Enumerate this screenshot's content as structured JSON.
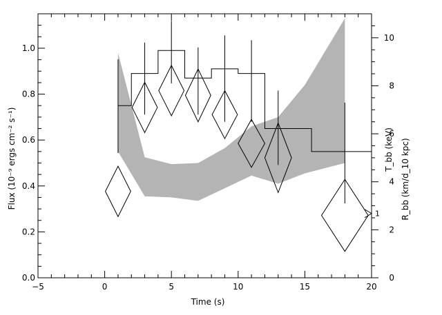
{
  "chart_data": {
    "type": "scatter",
    "xlabel": "Time (s)",
    "ylabel_left": "Flux (10⁻⁹ ergs cm⁻² s⁻¹)",
    "ylabel_right_temp": "T_bb (keV)",
    "ylabel_right_radius": "R_bb (km/d_10 kpc)",
    "xlim": [
      -5,
      20
    ],
    "ylim_left": [
      0.0,
      1.15
    ],
    "ylim_right": [
      0,
      11
    ],
    "x_ticks": [
      "−5",
      "0",
      "5",
      "10",
      "15",
      "20"
    ],
    "y_left_ticks": [
      "0.0",
      "0.2",
      "0.4",
      "0.6",
      "0.8",
      "1.0"
    ],
    "y_right_ticks": [
      "0",
      "2",
      "4",
      "6",
      "8",
      "10"
    ],
    "flux_histogram": {
      "name": "Flux",
      "bins": [
        {
          "x0": 1.0,
          "x1": 2.0,
          "value": 0.75
        },
        {
          "x0": 2.0,
          "x1": 4.0,
          "value": 0.89
        },
        {
          "x0": 4.0,
          "x1": 6.0,
          "value": 0.99
        },
        {
          "x0": 6.0,
          "x1": 8.0,
          "value": 0.87
        },
        {
          "x0": 8.0,
          "x1": 10.0,
          "value": 0.91
        },
        {
          "x0": 10.0,
          "x1": 12.0,
          "value": 0.89
        },
        {
          "x0": 12.0,
          "x1": 15.5,
          "value": 0.65
        },
        {
          "x0": 15.5,
          "x1": 20.0,
          "value": 0.55
        }
      ]
    },
    "temperature": {
      "name": "T_bb",
      "points": [
        {
          "x": 1.0,
          "y": 6.8,
          "yerr_low": 5.2,
          "yerr_high": 9.1
        },
        {
          "x": 3.0,
          "y": 7.2,
          "yerr_low": 6.8,
          "yerr_high": 9.8
        },
        {
          "x": 5.0,
          "y": 8.8,
          "yerr_low": 8.1,
          "yerr_high": 10.7
        },
        {
          "x": 7.0,
          "y": 8.3,
          "yerr_low": 6.8,
          "yerr_high": 9.6
        },
        {
          "x": 9.0,
          "y": 8.1,
          "yerr_low": 6.5,
          "yerr_high": 10.1
        },
        {
          "x": 11.0,
          "y": 8.3,
          "yerr_low": 6.5,
          "yerr_high": 9.9
        },
        {
          "x": 13.0,
          "y": 6.3,
          "yerr_low": 4.7,
          "yerr_high": 7.8
        },
        {
          "x": 18.0,
          "y": 4.9,
          "yerr_low": 3.1,
          "yerr_high": 7.3
        }
      ]
    },
    "radius": {
      "name": "R_bb",
      "diamonds": [
        {
          "x": 1.0,
          "y": 3.6,
          "half_width": 0.95,
          "half_height": 1.05
        },
        {
          "x": 3.0,
          "y": 7.1,
          "half_width": 0.95,
          "half_height": 1.05
        },
        {
          "x": 5.0,
          "y": 7.8,
          "half_width": 0.95,
          "half_height": 1.05
        },
        {
          "x": 7.0,
          "y": 7.6,
          "half_width": 0.95,
          "half_height": 1.1
        },
        {
          "x": 9.0,
          "y": 6.8,
          "half_width": 0.95,
          "half_height": 1.0
        },
        {
          "x": 11.0,
          "y": 5.6,
          "half_width": 1.0,
          "half_height": 1.0
        },
        {
          "x": 13.0,
          "y": 5.0,
          "half_width": 1.0,
          "half_height": 1.45
        },
        {
          "x": 18.0,
          "y": 2.6,
          "half_width": 1.75,
          "half_height": 1.5
        }
      ]
    },
    "shaded_band": {
      "x": [
        1.0,
        3.0,
        5.0,
        7.0,
        9.0,
        11.0,
        13.0,
        15.0,
        18.0
      ],
      "lower": [
        0.55,
        0.355,
        0.35,
        0.335,
        0.39,
        0.445,
        0.41,
        0.455,
        0.5
      ],
      "upper": [
        0.98,
        0.525,
        0.495,
        0.5,
        0.565,
        0.66,
        0.7,
        0.84,
        1.13
      ]
    },
    "annotation": {
      "x": 20.0,
      "y": 0.28,
      "text": "1"
    }
  }
}
